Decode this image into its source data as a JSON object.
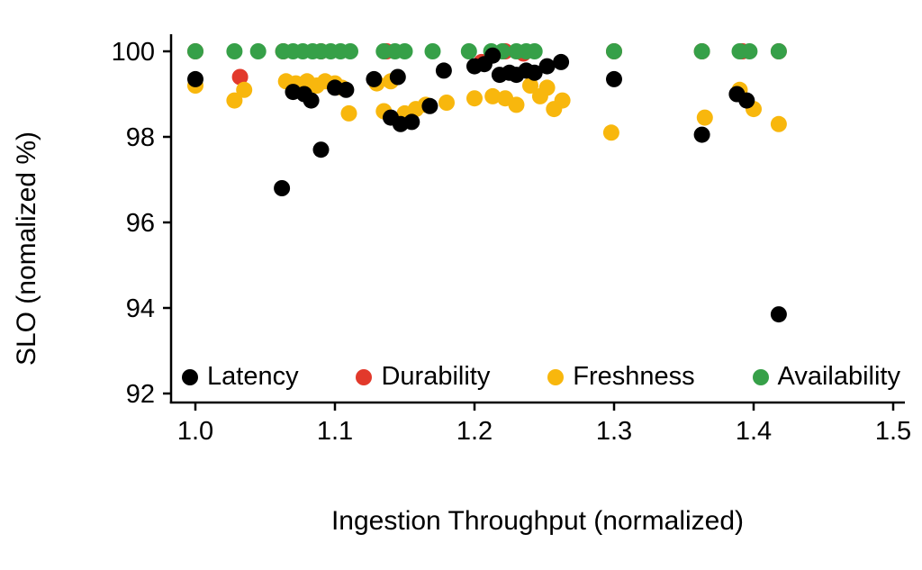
{
  "chart": {
    "ylabel": "SLO (nomalized %)",
    "xlabel": "Ingestion Throughput (normalized)"
  },
  "chart_data": {
    "type": "scatter",
    "title": "",
    "xlabel": "Ingestion Throughput (normalized)",
    "ylabel": "SLO (nomalized %)",
    "xlim": [
      0.98,
      1.5
    ],
    "ylim": [
      91.8,
      100.3
    ],
    "xtick_values": [
      1.0,
      1.1,
      1.2,
      1.3,
      1.4,
      1.5
    ],
    "xtick_labels": [
      "1.0",
      "1.1",
      "1.2",
      "1.3",
      "1.4",
      "1.5"
    ],
    "ytick_values": [
      92,
      94,
      96,
      98,
      100
    ],
    "ytick_labels": [
      "92",
      "94",
      "96",
      "98",
      "100"
    ],
    "grid": false,
    "legend_position": "inside bottom",
    "series": [
      {
        "name": "Latency",
        "color": "#000000",
        "points": [
          [
            1.0,
            99.35
          ],
          [
            1.062,
            96.8
          ],
          [
            1.07,
            99.05
          ],
          [
            1.078,
            99.0
          ],
          [
            1.083,
            98.85
          ],
          [
            1.09,
            97.7
          ],
          [
            1.1,
            99.15
          ],
          [
            1.108,
            99.1
          ],
          [
            1.128,
            99.35
          ],
          [
            1.145,
            99.4
          ],
          [
            1.14,
            98.45
          ],
          [
            1.147,
            98.3
          ],
          [
            1.155,
            98.35
          ],
          [
            1.168,
            98.72
          ],
          [
            1.178,
            99.55
          ],
          [
            1.2,
            99.65
          ],
          [
            1.207,
            99.7
          ],
          [
            1.213,
            99.9
          ],
          [
            1.218,
            99.45
          ],
          [
            1.225,
            99.5
          ],
          [
            1.23,
            99.45
          ],
          [
            1.237,
            99.55
          ],
          [
            1.243,
            99.5
          ],
          [
            1.252,
            99.65
          ],
          [
            1.262,
            99.75
          ],
          [
            1.3,
            99.35
          ],
          [
            1.363,
            98.05
          ],
          [
            1.388,
            99.0
          ],
          [
            1.395,
            98.85
          ],
          [
            1.418,
            93.85
          ]
        ]
      },
      {
        "name": "Durability",
        "color": "#e2392b",
        "points": [
          [
            1.0,
            100
          ],
          [
            1.032,
            99.4
          ],
          [
            1.063,
            100
          ],
          [
            1.09,
            100
          ],
          [
            1.137,
            100
          ],
          [
            1.205,
            99.75
          ],
          [
            1.222,
            100
          ],
          [
            1.235,
            99.95
          ],
          [
            1.3,
            100
          ],
          [
            1.363,
            100
          ],
          [
            1.392,
            100
          ],
          [
            1.418,
            100
          ]
        ]
      },
      {
        "name": "Freshness",
        "color": "#f8b70d",
        "points": [
          [
            1.0,
            99.2
          ],
          [
            1.028,
            98.85
          ],
          [
            1.035,
            99.1
          ],
          [
            1.065,
            99.3
          ],
          [
            1.072,
            99.25
          ],
          [
            1.08,
            99.3
          ],
          [
            1.087,
            99.2
          ],
          [
            1.093,
            99.3
          ],
          [
            1.1,
            99.25
          ],
          [
            1.105,
            99.15
          ],
          [
            1.11,
            98.55
          ],
          [
            1.13,
            99.25
          ],
          [
            1.14,
            99.3
          ],
          [
            1.135,
            98.6
          ],
          [
            1.15,
            98.55
          ],
          [
            1.158,
            98.65
          ],
          [
            1.165,
            98.75
          ],
          [
            1.18,
            98.8
          ],
          [
            1.2,
            98.9
          ],
          [
            1.213,
            98.95
          ],
          [
            1.222,
            98.9
          ],
          [
            1.23,
            98.75
          ],
          [
            1.24,
            99.2
          ],
          [
            1.247,
            98.95
          ],
          [
            1.252,
            99.15
          ],
          [
            1.257,
            98.65
          ],
          [
            1.263,
            98.85
          ],
          [
            1.298,
            98.1
          ],
          [
            1.365,
            98.45
          ],
          [
            1.39,
            99.1
          ],
          [
            1.4,
            98.65
          ],
          [
            1.418,
            98.3
          ]
        ]
      },
      {
        "name": "Availability",
        "color": "#36a048",
        "points": [
          [
            1.0,
            100
          ],
          [
            1.028,
            100
          ],
          [
            1.045,
            100
          ],
          [
            1.063,
            100
          ],
          [
            1.07,
            100
          ],
          [
            1.077,
            100
          ],
          [
            1.084,
            100
          ],
          [
            1.09,
            100
          ],
          [
            1.097,
            100
          ],
          [
            1.104,
            100
          ],
          [
            1.111,
            100
          ],
          [
            1.135,
            100
          ],
          [
            1.143,
            100
          ],
          [
            1.15,
            100
          ],
          [
            1.17,
            100
          ],
          [
            1.196,
            100
          ],
          [
            1.212,
            100
          ],
          [
            1.22,
            100
          ],
          [
            1.23,
            100
          ],
          [
            1.237,
            100
          ],
          [
            1.243,
            100
          ],
          [
            1.3,
            100
          ],
          [
            1.363,
            100
          ],
          [
            1.39,
            100
          ],
          [
            1.397,
            100
          ],
          [
            1.418,
            100
          ]
        ]
      }
    ]
  }
}
